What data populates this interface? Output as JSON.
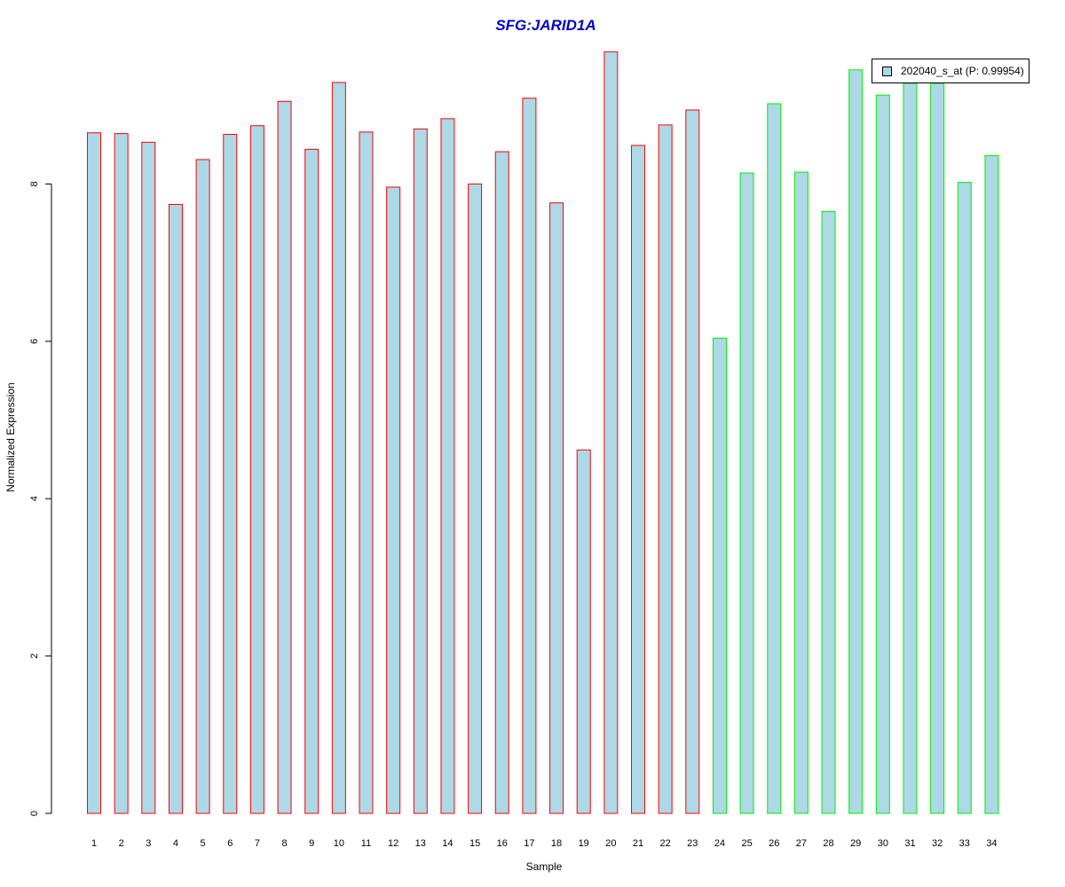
{
  "chart_data": {
    "type": "bar",
    "title": "SFG:JARID1A",
    "xlabel": "Sample",
    "ylabel": "Normalized Expression",
    "categories": [
      "1",
      "2",
      "3",
      "4",
      "5",
      "6",
      "7",
      "8",
      "9",
      "10",
      "11",
      "12",
      "13",
      "14",
      "15",
      "16",
      "17",
      "18",
      "19",
      "20",
      "21",
      "22",
      "23",
      "24",
      "25",
      "26",
      "27",
      "28",
      "29",
      "30",
      "31",
      "32",
      "33",
      "34"
    ],
    "values": [
      8.65,
      8.64,
      8.53,
      7.74,
      8.31,
      8.63,
      8.74,
      9.05,
      8.44,
      9.29,
      8.66,
      7.96,
      8.7,
      8.83,
      8.0,
      8.41,
      9.09,
      7.76,
      4.62,
      9.68,
      8.49,
      8.75,
      8.94,
      6.04,
      8.14,
      9.02,
      8.15,
      7.65,
      9.45,
      9.13,
      9.28,
      9.28,
      8.02,
      8.36
    ],
    "group_borders": [
      "#ff0000",
      "#ff0000",
      "#ff0000",
      "#ff0000",
      "#ff0000",
      "#ff0000",
      "#ff0000",
      "#ff0000",
      "#ff0000",
      "#ff0000",
      "#ff0000",
      "#ff0000",
      "#ff0000",
      "#ff0000",
      "#ff0000",
      "#ff0000",
      "#ff0000",
      "#ff0000",
      "#ff0000",
      "#ff0000",
      "#ff0000",
      "#ff0000",
      "#ff0000",
      "#00ee00",
      "#00ee00",
      "#00ee00",
      "#00ee00",
      "#00ee00",
      "#00ee00",
      "#00ee00",
      "#00ee00",
      "#00ee00",
      "#00ee00",
      "#00ee00"
    ],
    "bar_fill": "#add8e6",
    "title_color": "#0000cc",
    "ylim": [
      0,
      10
    ],
    "yticks": [
      0,
      2,
      4,
      6,
      8
    ],
    "grid": false,
    "legend_position": "top-right",
    "series": [
      {
        "name": "202040_s_at (P: 0.99954)"
      }
    ]
  }
}
